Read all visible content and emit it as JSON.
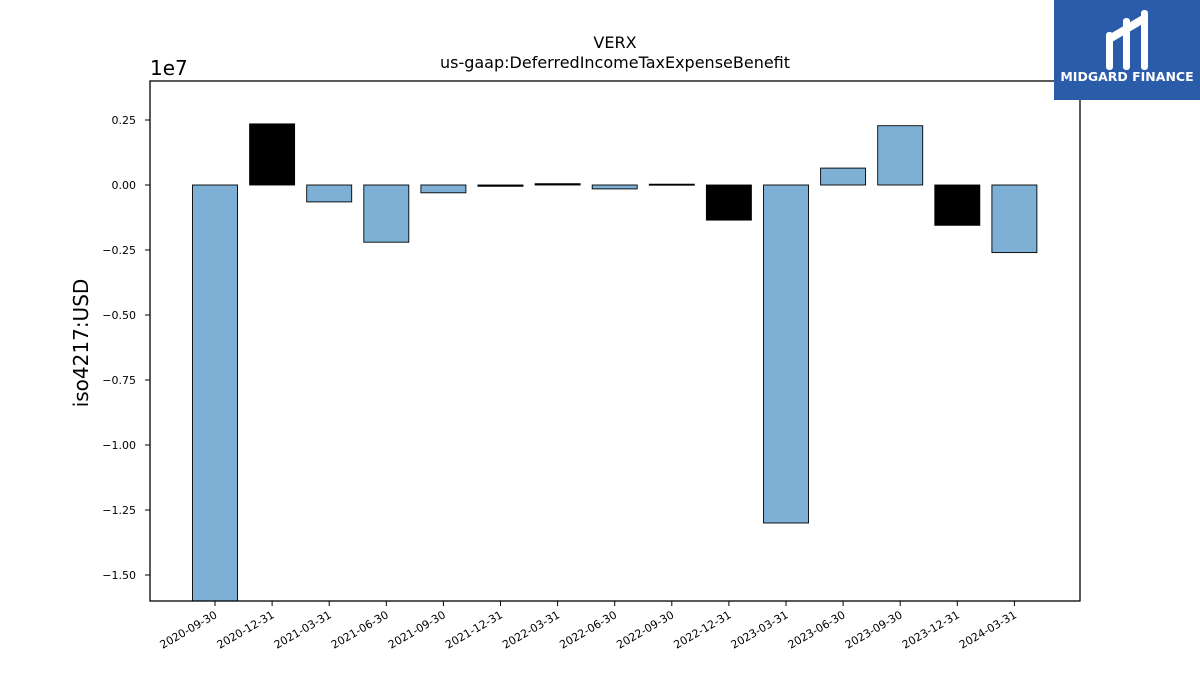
{
  "logo": {
    "text": "MIDGARD FINANCE",
    "background_color": "#2a5caa"
  },
  "chart_data": {
    "type": "bar",
    "title": "VERX",
    "subtitle": "us-gaap:DeferredIncomeTaxExpenseBenefit",
    "xlabel": "",
    "ylabel": "iso4217:USD",
    "y_offset_label": "1e7",
    "ylim": [
      -1.6,
      0.4
    ],
    "yticks": [
      0.25,
      0.0,
      -0.25,
      -0.5,
      -0.75,
      -1.0,
      -1.25,
      -1.5
    ],
    "ytick_labels": [
      "0.25",
      "0.00",
      "−0.25",
      "−0.50",
      "−0.75",
      "−1.00",
      "−1.25",
      "−1.50"
    ],
    "categories": [
      "2020-09-30",
      "2020-12-31",
      "2021-03-31",
      "2021-06-30",
      "2021-09-30",
      "2021-12-31",
      "2022-03-31",
      "2022-06-30",
      "2022-09-30",
      "2022-12-31",
      "2023-03-31",
      "2023-06-30",
      "2023-09-30",
      "2023-12-31",
      "2024-03-31"
    ],
    "values": [
      -1.6,
      0.235,
      -0.065,
      -0.22,
      -0.03,
      -0.005,
      0.005,
      -0.015,
      0.003,
      -0.135,
      -1.3,
      0.065,
      0.228,
      -0.155,
      -0.26
    ],
    "bar_colors": [
      "#7eb0d5",
      "#000000",
      "#7eb0d5",
      "#7eb0d5",
      "#7eb0d5",
      "#000000",
      "#000000",
      "#7eb0d5",
      "#000000",
      "#000000",
      "#7eb0d5",
      "#7eb0d5",
      "#7eb0d5",
      "#000000",
      "#7eb0d5"
    ],
    "grid": false,
    "legend": "none"
  }
}
